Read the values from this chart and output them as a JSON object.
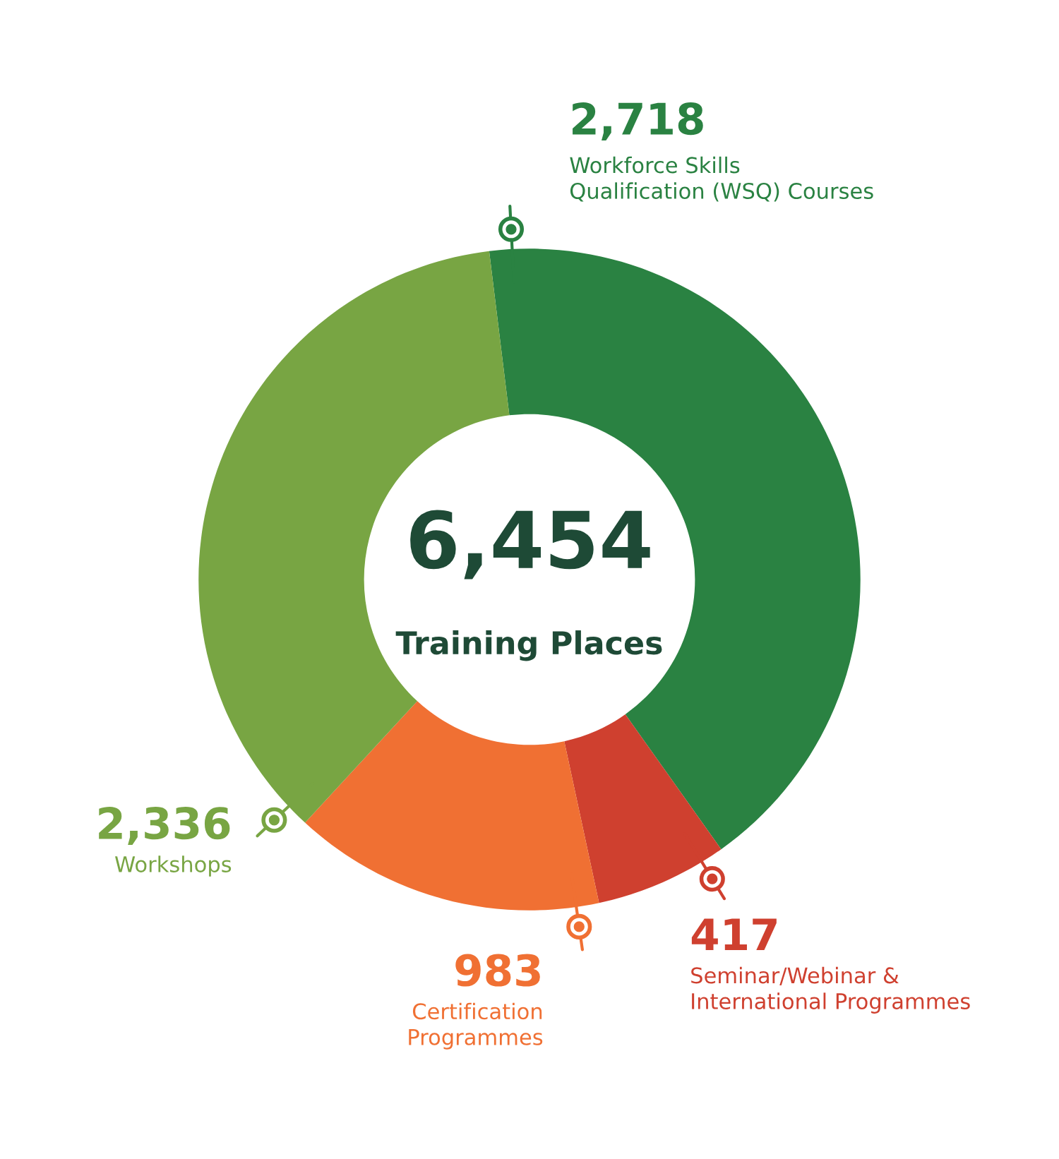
{
  "chart_data": {
    "type": "donut",
    "title": "6,454",
    "subtitle": "Training Places",
    "categories": [
      "Workforce Skills\nQualification (WSQ) Courses",
      "Seminar/Webinar &\nInternational Programmes",
      "Certification\nProgrammes",
      "Workshops"
    ],
    "values": [
      2718,
      417,
      983,
      2336
    ],
    "value_labels": [
      "2,718",
      "417",
      "983",
      "2,336"
    ],
    "colors": [
      "#2a8242",
      "#cf402f",
      "#f07033",
      "#78a543"
    ]
  }
}
